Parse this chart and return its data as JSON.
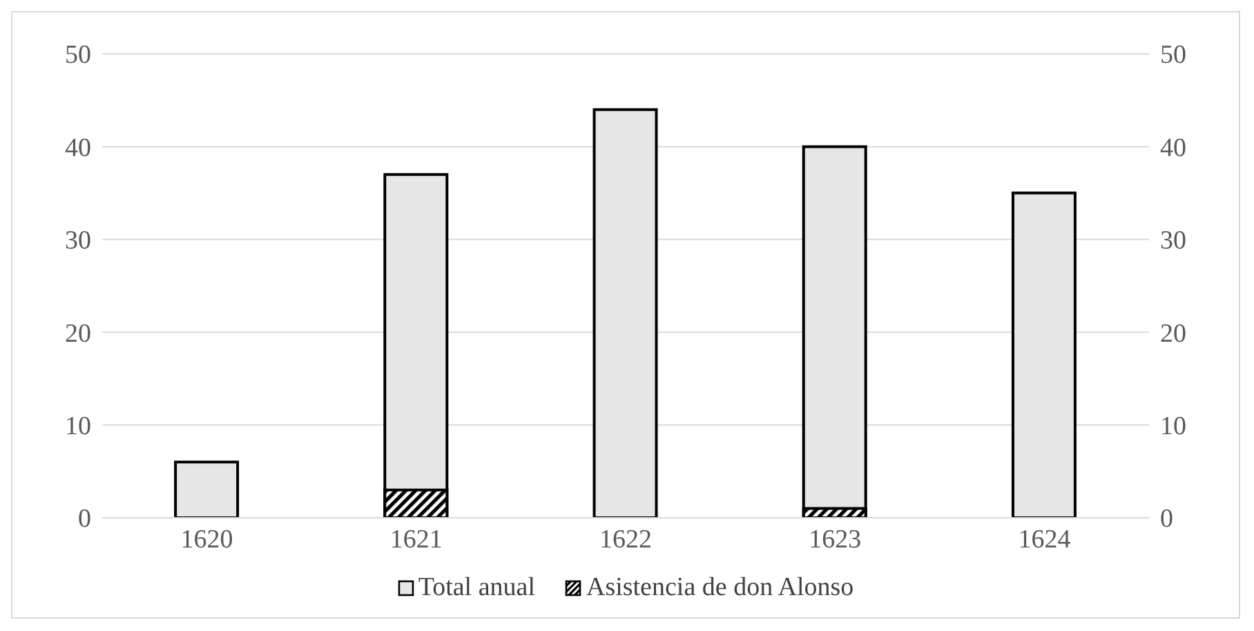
{
  "chart_data": {
    "type": "bar",
    "categories": [
      "1620",
      "1621",
      "1622",
      "1623",
      "1624"
    ],
    "series": [
      {
        "name": "Total anual",
        "color": "#e6e6e6",
        "values": [
          6,
          37,
          44,
          40,
          35
        ]
      },
      {
        "name": "Asistencia de don Alonso",
        "color": "#000000",
        "values": [
          0,
          3,
          0,
          1,
          0
        ]
      }
    ],
    "ylim": [
      0,
      50
    ],
    "yticks": [
      0,
      10,
      20,
      30,
      40,
      50
    ],
    "y2lim": [
      0,
      50
    ],
    "y2ticks": [
      0,
      10,
      20,
      30,
      40,
      50
    ],
    "grid": "y",
    "legend": "bottom"
  }
}
